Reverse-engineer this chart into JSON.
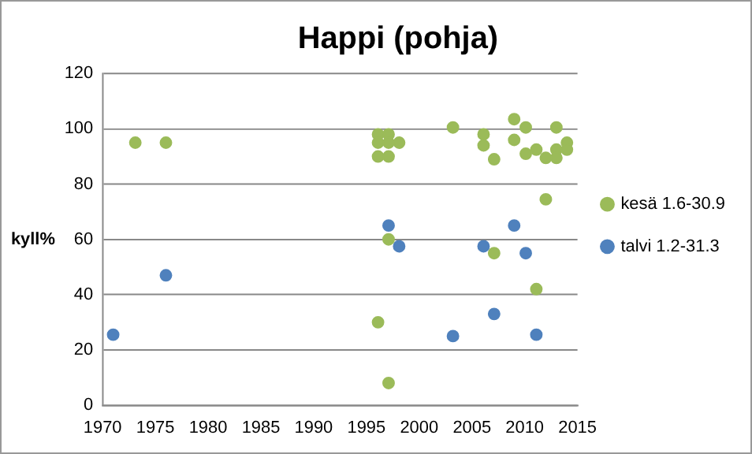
{
  "chart_data": {
    "type": "scatter",
    "title": "Happi (pohja)",
    "ylabel": "kyll%",
    "xlim": [
      1970,
      2015
    ],
    "xticks": [
      1970,
      1975,
      1980,
      1985,
      1990,
      1995,
      2000,
      2005,
      2010,
      2015
    ],
    "ylim": [
      0,
      120
    ],
    "yticks": [
      0,
      20,
      40,
      60,
      80,
      100,
      120
    ],
    "grid": "y",
    "legend": "right",
    "marker": "circle",
    "series": [
      {
        "name": "kesä 1.6-30.9",
        "color": "#9bbb59",
        "x": [
          1973.1,
          1976,
          1996.1,
          1996.1,
          1996.1,
          1997.1,
          1997.1,
          1997.1,
          1998.1,
          2003.2,
          2006.1,
          2006.1,
          2007.1,
          2009,
          2009,
          2010.1,
          2010.1,
          2011.1,
          2012,
          2012,
          2013,
          2013,
          2013,
          2014,
          2014,
          2011.1,
          1997.1,
          2007.1,
          1996.1,
          1997.1
        ],
        "values": [
          95,
          95,
          98,
          95,
          90,
          98,
          95,
          90,
          95,
          100.5,
          98,
          94,
          89,
          103.5,
          96,
          100.5,
          91,
          92.5,
          89.5,
          74.5,
          100.5,
          92.5,
          89.5,
          95,
          92.5,
          42,
          60,
          55,
          30,
          8
        ]
      },
      {
        "name": "talvi 1.2-31.3",
        "color": "#4f81bd",
        "x": [
          1971,
          1976,
          1997.1,
          1998.1,
          2006.1,
          2009,
          2010.1,
          2003.2,
          2007.1,
          2011.1
        ],
        "values": [
          25.5,
          47,
          65,
          57.5,
          57.5,
          65,
          55,
          25,
          33,
          25.5
        ]
      }
    ]
  }
}
